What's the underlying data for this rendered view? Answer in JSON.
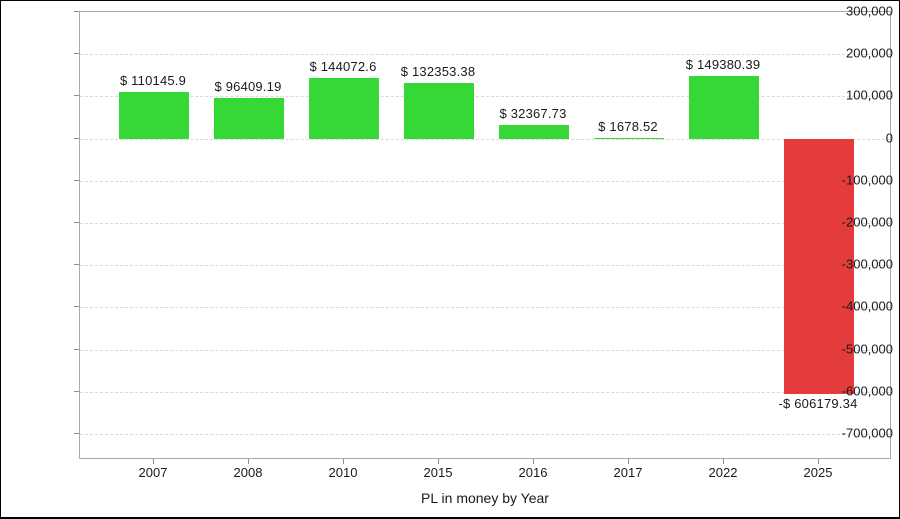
{
  "chart_data": {
    "type": "bar",
    "title": "PL in money by Year",
    "xlabel": "PL in money by Year",
    "ylabel": "",
    "categories": [
      "2007",
      "2008",
      "2010",
      "2015",
      "2016",
      "2017",
      "2022",
      "2025"
    ],
    "values": [
      110145.9,
      96409.19,
      144072.6,
      132353.38,
      32367.73,
      1678.52,
      149380.39,
      -606179.34
    ],
    "bar_value_labels": [
      "$ 110145.9",
      "$ 96409.19",
      "$ 144072.6",
      "$ 132353.38",
      "$ 32367.73",
      "$ 1678.52",
      "$ 149380.39",
      "-$ 606179.34"
    ],
    "ylim": [
      -700000,
      300000
    ],
    "y_ticks": [
      300000,
      200000,
      100000,
      0,
      -100000,
      -200000,
      -300000,
      -400000,
      -500000,
      -600000,
      -700000
    ],
    "y_tick_labels": [
      "300,000",
      "200,000",
      "100,000",
      "0",
      "-100,000",
      "-200,000",
      "-300,000",
      "-400,000",
      "-500,000",
      "-600,000",
      "-700,000"
    ],
    "grid": true,
    "grid_style": "dashed",
    "legend": false,
    "colors": {
      "positive_bar": "#35d835",
      "negative_bar": "#e43c3c",
      "gridline": "#d9d9d9",
      "plot_border": "#a9a9a9",
      "tick_mark": "#8c8c8c",
      "text": "#1a1a1a",
      "background": "#ffffff"
    }
  }
}
